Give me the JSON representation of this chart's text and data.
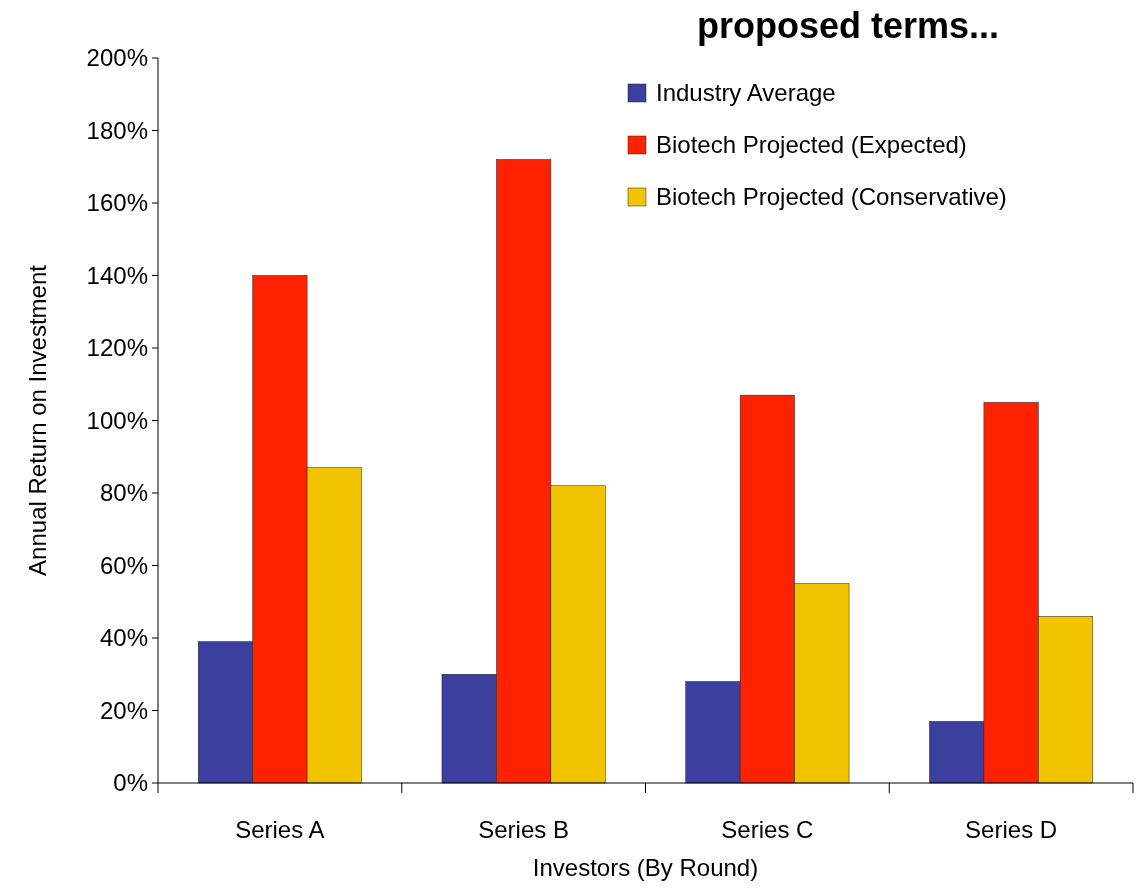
{
  "chart_data": {
    "type": "bar",
    "title": "proposed terms...",
    "xlabel": "Investors (By Round)",
    "ylabel": "Annual Return on Investment",
    "categories": [
      "Series A",
      "Series B",
      "Series C",
      "Series D"
    ],
    "series": [
      {
        "name": "Industry Average",
        "color": "#3b3f9e",
        "values": [
          39,
          30,
          28,
          17
        ]
      },
      {
        "name": "Biotech Projected (Expected)",
        "color": "#ff2200",
        "values": [
          140,
          172,
          107,
          105
        ]
      },
      {
        "name": "Biotech Projected (Conservative)",
        "color": "#f2c400",
        "values": [
          87,
          82,
          55,
          46
        ]
      }
    ],
    "ylim": [
      0,
      200
    ],
    "yticks": [
      {
        "value": 0,
        "label": "0%"
      },
      {
        "value": 20,
        "label": "20%"
      },
      {
        "value": 40,
        "label": "40%"
      },
      {
        "value": 60,
        "label": "60%"
      },
      {
        "value": 80,
        "label": "80%"
      },
      {
        "value": 100,
        "label": "100%"
      },
      {
        "value": 120,
        "label": "120%"
      },
      {
        "value": 140,
        "label": "140%"
      },
      {
        "value": 160,
        "label": "160%"
      },
      {
        "value": 180,
        "label": "180%"
      },
      {
        "value": 200,
        "label": "200%"
      }
    ],
    "legend": "top right",
    "grid": false
  }
}
